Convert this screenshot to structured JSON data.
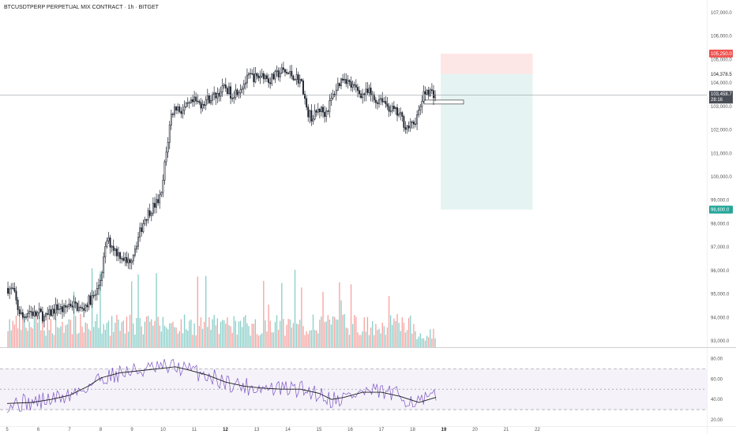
{
  "header": {
    "title": "BTCUSDTPERP PERPETUAL MIX CONTRACT · 1h · BITGET"
  },
  "colors": {
    "up": "#26a69a",
    "down": "#ef5350",
    "candle": "#1f2530",
    "rsi_line": "#7e57c2",
    "rsi_ma": "#1b1b1b",
    "rsi_band": "#7e57c2",
    "target_zone": "#26a69a",
    "stop_zone": "#ef5350"
  },
  "price_axis": {
    "ticks": [
      "107,000.0",
      "106,000.0",
      "105,000.0",
      "104,000.0",
      "103,000.0",
      "102,000.0",
      "101,000.0",
      "100,000.0",
      "99,000.0",
      "98,000.0",
      "97,000.0",
      "96,000.0",
      "95,000.0",
      "94,000.0",
      "93,000.0"
    ],
    "stop_label": "105,250.0",
    "current_price_label": "104,378.5",
    "last_label": "103,458.7",
    "countdown": "28:16",
    "target_label": "98,600.0"
  },
  "rsi_axis": {
    "ticks": [
      "80.00",
      "60.00",
      "40.00",
      "20.00"
    ]
  },
  "date_axis": {
    "ticks": [
      "5",
      "6",
      "7",
      "8",
      "9",
      "10",
      "11",
      "12",
      "13",
      "14",
      "15",
      "16",
      "17",
      "18",
      "19",
      "20",
      "21",
      "22"
    ],
    "bold": [
      "12",
      "19"
    ]
  },
  "chart_data": {
    "type": "candlestick",
    "title": "BTCUSDTPERP PERPETUAL MIX CONTRACT · 1h · BITGET",
    "ylim": [
      92600,
      107400
    ],
    "xlim": [
      0,
      22
    ],
    "candle_path": [
      [
        0.0,
        95250
      ],
      [
        0.2,
        95150
      ],
      [
        0.35,
        94350
      ],
      [
        0.5,
        94000
      ],
      [
        0.7,
        94300
      ],
      [
        0.9,
        94100
      ],
      [
        1.05,
        94200
      ],
      [
        1.2,
        93950
      ],
      [
        1.4,
        94200
      ],
      [
        1.6,
        94450
      ],
      [
        1.8,
        94300
      ],
      [
        2.0,
        94600
      ],
      [
        2.2,
        94500
      ],
      [
        2.4,
        94300
      ],
      [
        2.6,
        94700
      ],
      [
        2.8,
        94900
      ],
      [
        2.9,
        95200
      ],
      [
        3.0,
        95700
      ],
      [
        3.1,
        96500
      ],
      [
        3.2,
        97300
      ],
      [
        3.35,
        97100
      ],
      [
        3.5,
        96800
      ],
      [
        3.7,
        96600
      ],
      [
        3.85,
        96300
      ],
      [
        4.0,
        96600
      ],
      [
        4.2,
        97400
      ],
      [
        4.4,
        98200
      ],
      [
        4.6,
        98600
      ],
      [
        4.8,
        98900
      ],
      [
        4.95,
        99200
      ],
      [
        5.05,
        100500
      ],
      [
        5.15,
        101500
      ],
      [
        5.25,
        102600
      ],
      [
        5.4,
        103000
      ],
      [
        5.6,
        102800
      ],
      [
        5.8,
        103000
      ],
      [
        6.0,
        103200
      ],
      [
        6.2,
        103100
      ],
      [
        6.4,
        103300
      ],
      [
        6.6,
        103400
      ],
      [
        6.8,
        103600
      ],
      [
        7.0,
        103800
      ],
      [
        7.2,
        103500
      ],
      [
        7.4,
        103700
      ],
      [
        7.6,
        104000
      ],
      [
        7.8,
        104300
      ],
      [
        8.0,
        104200
      ],
      [
        8.2,
        104400
      ],
      [
        8.4,
        104100
      ],
      [
        8.6,
        104300
      ],
      [
        8.8,
        104500
      ],
      [
        9.0,
        104400
      ],
      [
        9.2,
        104300
      ],
      [
        9.4,
        104100
      ],
      [
        9.5,
        103700
      ],
      [
        9.6,
        102800
      ],
      [
        9.8,
        102500
      ],
      [
        10.0,
        102900
      ],
      [
        10.2,
        102700
      ],
      [
        10.4,
        103300
      ],
      [
        10.6,
        103900
      ],
      [
        10.8,
        104300
      ],
      [
        11.0,
        103900
      ],
      [
        11.2,
        103700
      ],
      [
        11.4,
        103500
      ],
      [
        11.6,
        103600
      ],
      [
        11.8,
        103200
      ],
      [
        12.0,
        103400
      ],
      [
        12.2,
        103000
      ],
      [
        12.4,
        102800
      ],
      [
        12.6,
        102600
      ],
      [
        12.8,
        102100
      ],
      [
        13.0,
        102200
      ],
      [
        13.2,
        102700
      ],
      [
        13.3,
        103300
      ],
      [
        13.45,
        103700
      ],
      [
        13.6,
        103600
      ],
      [
        13.75,
        103500
      ]
    ],
    "volume": {
      "ylim": [
        0,
        9000
      ]
    },
    "rsi": {
      "ylim": [
        20,
        85
      ],
      "upper_band": 70,
      "middle_band": 50,
      "lower_band": 30,
      "ma_path": [
        [
          0.0,
          36
        ],
        [
          0.8,
          37
        ],
        [
          1.4,
          40
        ],
        [
          2.0,
          44
        ],
        [
          2.6,
          53
        ],
        [
          3.0,
          61
        ],
        [
          3.6,
          66
        ],
        [
          4.2,
          68
        ],
        [
          4.8,
          70
        ],
        [
          5.4,
          72
        ],
        [
          5.8,
          69
        ],
        [
          6.4,
          64
        ],
        [
          7.0,
          57
        ],
        [
          7.6,
          53
        ],
        [
          8.2,
          51
        ],
        [
          8.8,
          50
        ],
        [
          9.4,
          50
        ],
        [
          10.0,
          46
        ],
        [
          10.4,
          40
        ],
        [
          10.8,
          42
        ],
        [
          11.4,
          47
        ],
        [
          12.0,
          47
        ],
        [
          12.6,
          43
        ],
        [
          13.2,
          37
        ],
        [
          13.75,
          42
        ]
      ]
    },
    "position": {
      "entry": 104378.5,
      "stop": 105250,
      "target": 98600,
      "x_start": 13.9,
      "x_end": 16.85
    },
    "current_price": 103458.7
  }
}
